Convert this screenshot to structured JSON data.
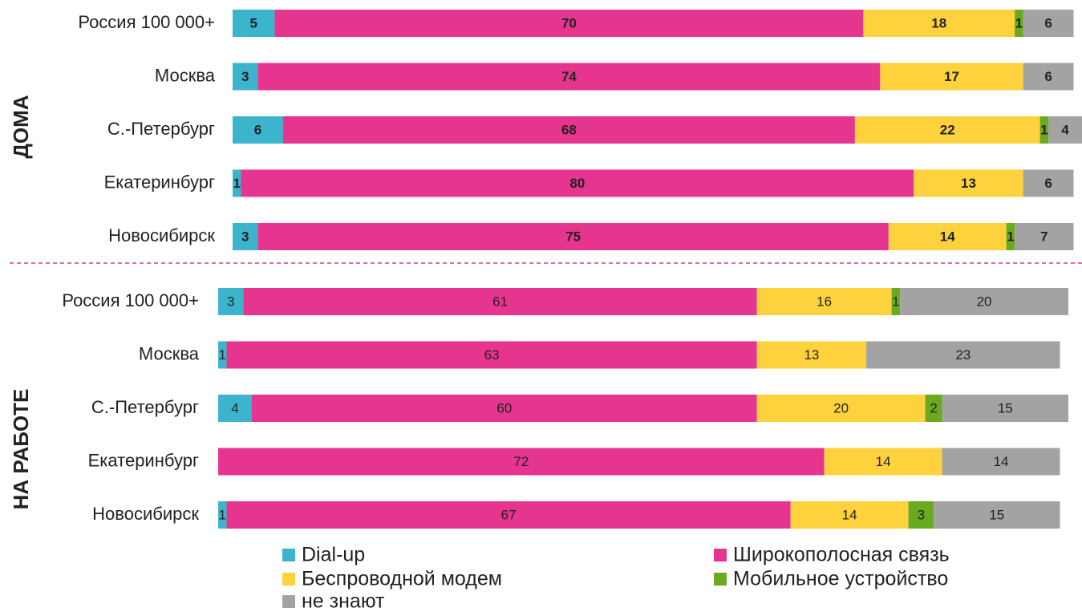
{
  "chart_data": [
    {
      "type": "bar",
      "orientation": "horizontal",
      "stacked": true,
      "title": "ДОМА",
      "categories": [
        "Россия 100 000+",
        "Москва",
        "С.-Петербург",
        "Екатеринбург",
        "Новосибирск"
      ],
      "xlim": [
        0,
        101
      ],
      "series": [
        {
          "name": "Dial-up",
          "color": "#3cb4cc",
          "values": [
            5,
            3,
            6,
            1,
            3
          ]
        },
        {
          "name": "Широкополосная связь",
          "color": "#e6358f",
          "values": [
            70,
            74,
            68,
            80,
            75
          ]
        },
        {
          "name": "Беспроводной модем",
          "color": "#fdd23c",
          "values": [
            18,
            17,
            22,
            13,
            14
          ]
        },
        {
          "name": "Мобильное устройство",
          "color": "#6aaa1e",
          "values": [
            1,
            0,
            1,
            0,
            1
          ]
        },
        {
          "name": "не знают",
          "color": "#a3a3a3",
          "values": [
            6,
            6,
            4,
            6,
            7
          ]
        }
      ]
    },
    {
      "type": "bar",
      "orientation": "horizontal",
      "stacked": true,
      "title": "НА РАБОТЕ",
      "categories": [
        "Россия 100 000+",
        "Москва",
        "С.-Петербург",
        "Екатеринбург",
        "Новосибирск"
      ],
      "xlim": [
        0,
        101
      ],
      "series": [
        {
          "values": [
            3,
            1,
            4,
            0,
            1
          ]
        },
        {
          "values": [
            61,
            63,
            60,
            72,
            67
          ]
        },
        {
          "values": [
            16,
            13,
            20,
            14,
            14
          ]
        },
        {
          "values": [
            1,
            0,
            2,
            0,
            3
          ]
        },
        {
          "values": [
            20,
            23,
            15,
            14,
            15
          ]
        }
      ]
    }
  ]
}
